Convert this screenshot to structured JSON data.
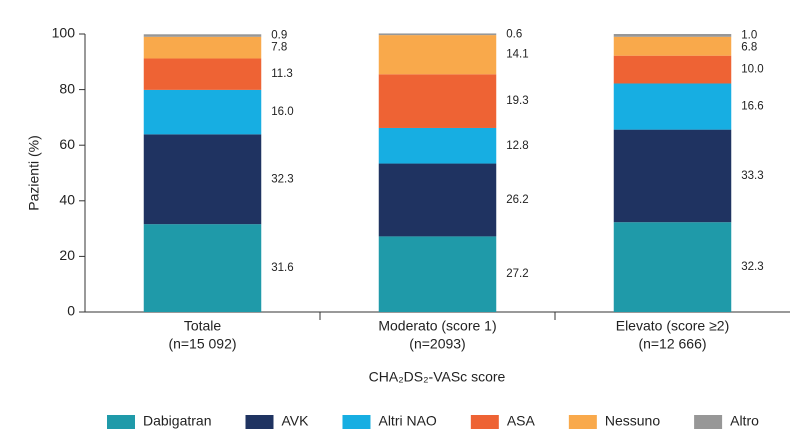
{
  "chart_data": {
    "type": "stacked_bar",
    "categories": [
      [
        "Totale",
        "(n=15 092)"
      ],
      [
        "Moderato (score 1)",
        "(n=2093)"
      ],
      [
        "Elevato (score ≥2)",
        "(n=12 666)"
      ]
    ],
    "x_label": "CHA₂DS₂-VASc score",
    "y_label": "Pazienti (%)",
    "ylim": [
      0,
      100
    ],
    "yticks": [
      0,
      20,
      40,
      60,
      80,
      100
    ],
    "grid": false,
    "legend": "bottom",
    "series": [
      {
        "name": "Dabigatran",
        "color": "#1f9aa9",
        "values": [
          31.6,
          27.2,
          32.3
        ],
        "value_labels": [
          "31.6",
          "27.2",
          "32.3"
        ]
      },
      {
        "name": "AVK",
        "color": "#1f3361",
        "values": [
          32.3,
          26.2,
          33.3
        ],
        "value_labels": [
          "32.3",
          "26.2",
          "33.3"
        ]
      },
      {
        "name": "Altri NAO",
        "color": "#17aee2",
        "values": [
          16.0,
          12.8,
          16.6
        ],
        "value_labels": [
          "16.0",
          "12.8",
          "16.6"
        ]
      },
      {
        "name": "ASA",
        "color": "#ee6334",
        "values": [
          11.3,
          19.3,
          10.0
        ],
        "value_labels": [
          "11.3",
          "19.3",
          "10.0"
        ]
      },
      {
        "name": "Nessuno",
        "color": "#f9a94b",
        "values": [
          7.8,
          14.1,
          6.8
        ],
        "value_labels": [
          "7.8",
          "14.1",
          "6.8"
        ]
      },
      {
        "name": "Altro",
        "color": "#979797",
        "values": [
          0.9,
          0.6,
          1.0
        ],
        "value_labels": [
          "0.9",
          "0.6",
          "1.0"
        ]
      }
    ]
  }
}
